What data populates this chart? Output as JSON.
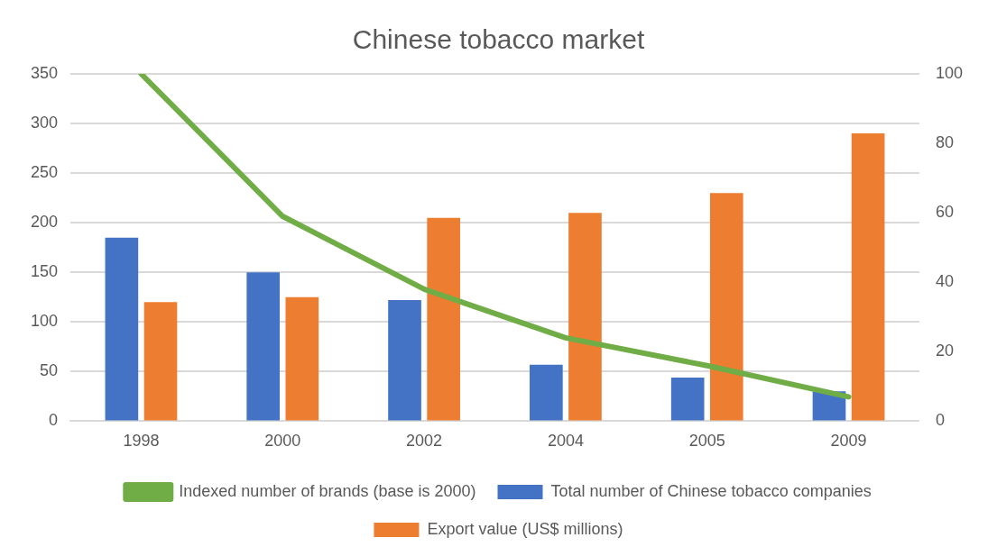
{
  "chart_data": {
    "type": "bar",
    "title": "Chinese tobacco market",
    "categories": [
      "1998",
      "2000",
      "2002",
      "2004",
      "2005",
      "2009"
    ],
    "series": [
      {
        "name": "Total number of Chinese tobacco companies",
        "color": "#4472c4",
        "values": [
          185,
          150,
          122,
          57,
          44,
          30
        ]
      },
      {
        "name": "Export value (US$ millions)",
        "color": "#ed7d31",
        "values": [
          120,
          125,
          205,
          210,
          230,
          290
        ]
      },
      {
        "name": "Indexed number of brands (base is 2000)",
        "color": "#70ad47",
        "type": "line",
        "axis": "y2",
        "values": [
          100,
          59,
          38,
          24,
          16,
          7
        ]
      }
    ],
    "ylim": [
      0,
      350
    ],
    "yticks": [
      0,
      50,
      100,
      150,
      200,
      250,
      300,
      350
    ],
    "y2lim": [
      0,
      100
    ],
    "y2ticks": [
      0,
      20,
      40,
      60,
      80,
      100
    ],
    "grid": "y",
    "legend": "bottom",
    "marker": "none",
    "line_style": "solid"
  }
}
